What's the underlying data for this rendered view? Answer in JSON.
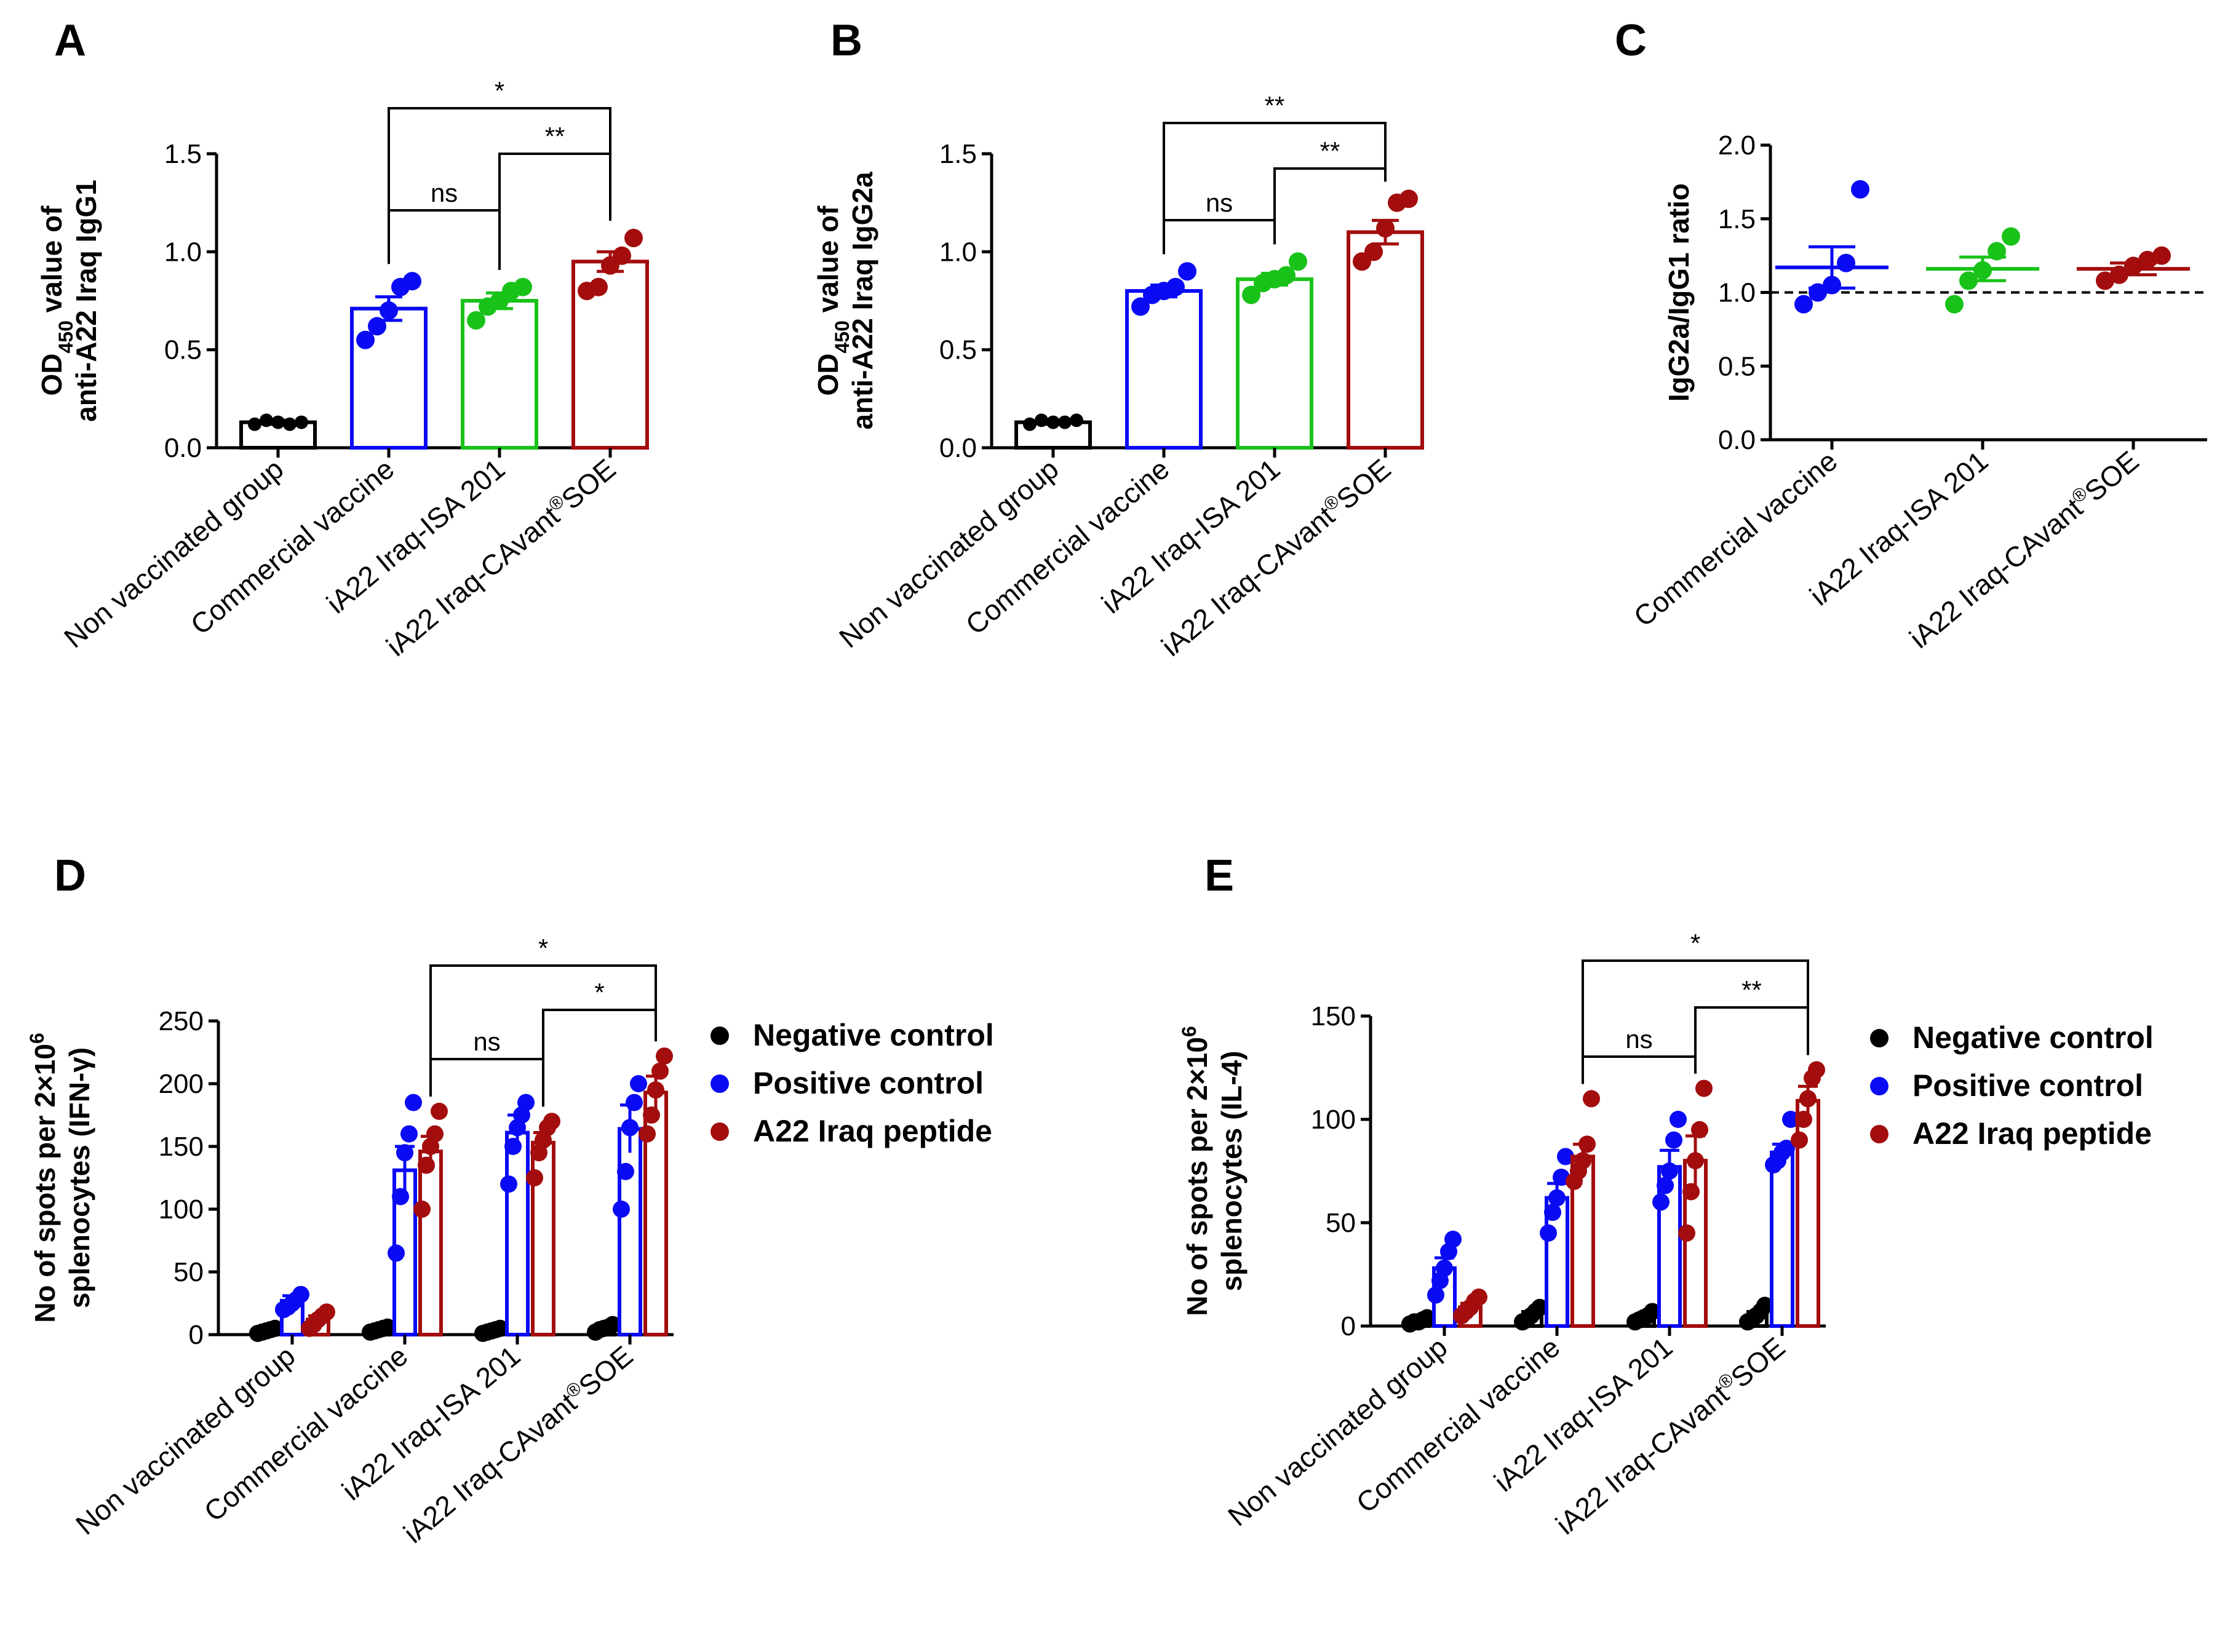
{
  "colors": {
    "negative": "#000000",
    "blue": "#0a0af5",
    "green": "#19c219",
    "red": "#a30d0d",
    "axis": "#000000"
  },
  "chart_data": [
    {
      "panel": "A",
      "type": "bar",
      "ylabel_main": "OD",
      "ylabel_sub": "450",
      "ylabel_rest": " value of",
      "ylabel_line2": "anti-A22 Iraq IgG1",
      "ylim": [
        0,
        1.5
      ],
      "yticks": [
        "0.0",
        "0.5",
        "1.0",
        "1.5"
      ],
      "categories": [
        "Non vaccinated group",
        "Commercial vaccine",
        "iA22 Iraq-ISA 201",
        "iA22 Iraq-CAvant®SOE"
      ],
      "series": [
        {
          "name": "OD450 IgG1",
          "values": [
            0.13,
            0.71,
            0.75,
            0.95
          ],
          "sem": [
            0.01,
            0.06,
            0.04,
            0.05
          ]
        }
      ],
      "points": [
        [
          0.12,
          0.14,
          0.13,
          0.12,
          0.13
        ],
        [
          0.55,
          0.62,
          0.7,
          0.82,
          0.85
        ],
        [
          0.65,
          0.72,
          0.75,
          0.8,
          0.82
        ],
        [
          0.8,
          0.82,
          0.93,
          0.98,
          1.07
        ]
      ],
      "significance": [
        {
          "from": 1,
          "to": 2,
          "label": "ns"
        },
        {
          "from": 2,
          "to": 3,
          "label": "**"
        },
        {
          "from": 1,
          "to": 3,
          "label": "*"
        }
      ]
    },
    {
      "panel": "B",
      "type": "bar",
      "ylabel_main": "OD",
      "ylabel_sub": "450",
      "ylabel_rest": " value of",
      "ylabel_line2": "anti-A22 Iraq IgG2a",
      "ylim": [
        0,
        1.5
      ],
      "yticks": [
        "0.0",
        "0.5",
        "1.0",
        "1.5"
      ],
      "categories": [
        "Non vaccinated group",
        "Commercial vaccine",
        "iA22 Iraq-ISA 201",
        "iA22 Iraq-CAvant®SOE"
      ],
      "series": [
        {
          "name": "OD450 IgG2a",
          "values": [
            0.13,
            0.8,
            0.86,
            1.1
          ],
          "sem": [
            0.01,
            0.03,
            0.03,
            0.06
          ]
        }
      ],
      "points": [
        [
          0.12,
          0.14,
          0.13,
          0.13,
          0.14
        ],
        [
          0.72,
          0.78,
          0.8,
          0.82,
          0.9
        ],
        [
          0.78,
          0.84,
          0.86,
          0.88,
          0.95
        ],
        [
          0.95,
          1.0,
          1.12,
          1.25,
          1.27
        ]
      ],
      "significance": [
        {
          "from": 1,
          "to": 2,
          "label": "ns"
        },
        {
          "from": 2,
          "to": 3,
          "label": "**"
        },
        {
          "from": 1,
          "to": 3,
          "label": "**"
        }
      ]
    },
    {
      "panel": "C",
      "type": "scatter",
      "ylabel": "IgG2a/IgG1 ratio",
      "ylim": [
        0,
        2.0
      ],
      "yticks": [
        "0.0",
        "0.5",
        "1.0",
        "1.5",
        "2.0"
      ],
      "reference_line": 1.0,
      "categories": [
        "Commercial vaccine",
        "iA22 Iraq-ISA 201",
        "iA22 Iraq-CAvant®SOE"
      ],
      "series": [
        {
          "name": "IgG2a/IgG1 ratio",
          "values": [
            1.17,
            1.16,
            1.16
          ],
          "sem": [
            0.14,
            0.08,
            0.04
          ]
        }
      ],
      "points": [
        [
          0.92,
          1.0,
          1.05,
          1.2,
          1.7
        ],
        [
          0.92,
          1.08,
          1.15,
          1.28,
          1.38
        ],
        [
          1.08,
          1.12,
          1.18,
          1.22,
          1.25
        ]
      ]
    },
    {
      "panel": "D",
      "type": "bar",
      "ylabel": "No of spots per 2×10",
      "ylabel_sup": "6",
      "ylabel_line2": "splenocytes  (IFN-γ)",
      "ylim": [
        0,
        250
      ],
      "yticks": [
        "0",
        "50",
        "100",
        "150",
        "200",
        "250"
      ],
      "categories": [
        "Non vaccinated group",
        "Commercial vaccine",
        "iA22 Iraq-ISA 201",
        "iA22 Iraq-CAvant®SOE"
      ],
      "series": [
        {
          "name": "Negative control",
          "values": [
            3,
            4,
            3,
            5
          ],
          "sem": [
            1,
            1,
            1,
            1
          ]
        },
        {
          "name": "Positive control",
          "values": [
            27,
            131,
            161,
            164
          ],
          "sem": [
            4,
            19,
            14,
            19
          ]
        },
        {
          "name": "A22 Iraq peptide",
          "values": [
            12,
            146,
            153,
            193
          ],
          "sem": [
            3,
            12,
            8,
            13
          ]
        }
      ],
      "points": [
        [
          [
            1,
            2,
            3,
            4,
            5
          ],
          [
            2,
            3,
            4,
            5,
            6
          ],
          [
            1,
            2,
            3,
            4,
            5
          ],
          [
            2,
            4,
            5,
            6,
            8
          ]
        ],
        [
          [
            20,
            22,
            25,
            28,
            32
          ],
          [
            65,
            110,
            145,
            160,
            185
          ],
          [
            120,
            150,
            165,
            175,
            185
          ],
          [
            100,
            130,
            165,
            185,
            200
          ]
        ],
        [
          [
            5,
            8,
            12,
            15,
            18
          ],
          [
            100,
            135,
            150,
            160,
            178
          ],
          [
            125,
            145,
            155,
            165,
            170
          ],
          [
            160,
            175,
            195,
            210,
            222
          ]
        ]
      ],
      "significance": [
        {
          "from": 1,
          "to": 2,
          "label": "ns"
        },
        {
          "from": 2,
          "to": 3,
          "label": "*"
        },
        {
          "from": 1,
          "to": 3,
          "label": "*"
        }
      ],
      "legend": [
        "Negative control",
        "Positive control",
        "A22 Iraq peptide"
      ]
    },
    {
      "panel": "E",
      "type": "bar",
      "ylabel": "No of spots per 2×10",
      "ylabel_sup": "6",
      "ylabel_line2": "splenocytes  (IL-4)",
      "ylim": [
        0,
        150
      ],
      "yticks": [
        "0",
        "50",
        "100",
        "150"
      ],
      "categories": [
        "Non vaccinated group",
        "Commercial vaccine",
        "iA22 Iraq-ISA 201",
        "iA22 Iraq-CAvant®SOE"
      ],
      "series": [
        {
          "name": "Negative control",
          "values": [
            2,
            5,
            4,
            5
          ],
          "sem": [
            1,
            2,
            1,
            2
          ]
        },
        {
          "name": "Positive control",
          "values": [
            28,
            62,
            77,
            84
          ],
          "sem": [
            5,
            7,
            8,
            4
          ]
        },
        {
          "name": "A22 Iraq peptide",
          "values": [
            9,
            82,
            80,
            109
          ],
          "sem": [
            2,
            6,
            12,
            7
          ]
        }
      ],
      "points": [
        [
          [
            1,
            2,
            2,
            3,
            4
          ],
          [
            2,
            3,
            5,
            7,
            9
          ],
          [
            2,
            3,
            4,
            5,
            7
          ],
          [
            2,
            3,
            5,
            7,
            10
          ]
        ],
        [
          [
            15,
            22,
            28,
            36,
            42
          ],
          [
            45,
            55,
            62,
            72,
            82
          ],
          [
            60,
            68,
            75,
            90,
            100
          ],
          [
            78,
            80,
            84,
            86,
            100
          ]
        ],
        [
          [
            5,
            7,
            9,
            12,
            14
          ],
          [
            70,
            75,
            80,
            88,
            110
          ],
          [
            45,
            65,
            80,
            95,
            115
          ],
          [
            90,
            100,
            110,
            120,
            124
          ]
        ]
      ],
      "significance": [
        {
          "from": 1,
          "to": 2,
          "label": "ns"
        },
        {
          "from": 2,
          "to": 3,
          "label": "**"
        },
        {
          "from": 1,
          "to": 3,
          "label": "*"
        }
      ],
      "legend": [
        "Negative control",
        "Positive control",
        "A22 Iraq peptide"
      ]
    }
  ]
}
